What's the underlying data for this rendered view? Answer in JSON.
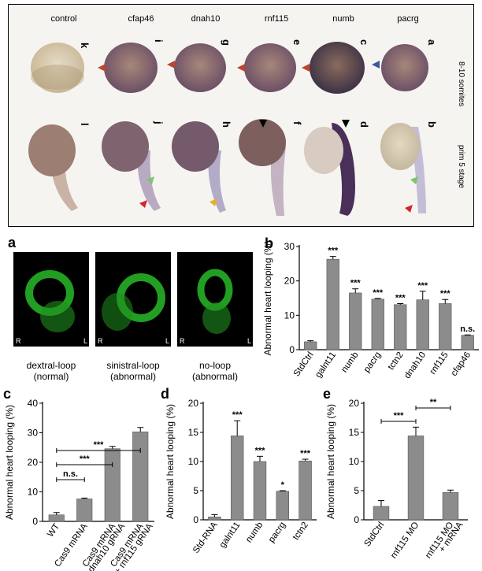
{
  "top_panel": {
    "columns": [
      "control",
      "cfap46",
      "dnah10",
      "rnf115",
      "numb",
      "pacrg"
    ],
    "row_labels": [
      "8-10 somites",
      "prim 5 stage"
    ],
    "row1_letters": [
      "k",
      "i",
      "g",
      "e",
      "c",
      "a"
    ],
    "row2_letters": [
      "l",
      "j",
      "h",
      "f",
      "d",
      "b"
    ]
  },
  "panel_a": {
    "letter": "a",
    "images": [
      {
        "caption": "dextral-loop\n(normal)",
        "left": "R",
        "right": "L"
      },
      {
        "caption": "sinistral-loop\n(abnormal)",
        "left": "R",
        "right": "L"
      },
      {
        "caption": "no-loop\n(abnormal)",
        "left": "R",
        "right": "L"
      }
    ]
  },
  "chart_data": [
    {
      "panel": "b",
      "type": "bar",
      "ylabel": "Abnormal heart looping (%)",
      "ylim": [
        0,
        30
      ],
      "yticks": [
        0,
        10,
        20,
        30
      ],
      "categories": [
        "StdCtrl",
        "galnt11",
        "numb",
        "pacrg",
        "tctn2",
        "dnah10",
        "rnf115",
        "cfap46"
      ],
      "values": [
        2.3,
        26.3,
        16.5,
        14.7,
        13.1,
        14.5,
        13.4,
        4.2
      ],
      "errors": [
        0.3,
        0.8,
        1.2,
        0.2,
        0.3,
        2.5,
        1.2,
        0.1
      ],
      "sig": [
        "",
        "***",
        "***",
        "***",
        "***",
        "***",
        "***",
        "n.s."
      ]
    },
    {
      "panel": "c",
      "type": "bar",
      "ylabel": "Abnormal heart looping (%)",
      "ylim": [
        0,
        40
      ],
      "yticks": [
        0,
        10,
        20,
        30,
        40
      ],
      "categories": [
        "WT",
        "Cas9 mRNA",
        "Cas9 mRNA\n+ dnah10 gRNA",
        "Cas9 mRNA\n+ rnf115 gRNA"
      ],
      "values": [
        2.2,
        7.6,
        24.6,
        30.3
      ],
      "errors": [
        0.8,
        0.3,
        0.8,
        1.5
      ],
      "brackets": [
        {
          "from": 0,
          "to": 1,
          "label": "n.s."
        },
        {
          "from": 0,
          "to": 2,
          "label": "***"
        },
        {
          "from": 0,
          "to": 3,
          "label": "***"
        }
      ]
    },
    {
      "panel": "d",
      "type": "bar",
      "ylabel": "Abnormal heart looping (%)",
      "ylim": [
        0,
        20
      ],
      "yticks": [
        0,
        5,
        10,
        15,
        20
      ],
      "categories": [
        "Std-RNA",
        "galnt11",
        "numb",
        "pacrg",
        "tctn2"
      ],
      "values": [
        0.5,
        14.4,
        10.0,
        4.9,
        10.1
      ],
      "errors": [
        0.4,
        2.6,
        0.9,
        0.1,
        0.3
      ],
      "sig": [
        "",
        "***",
        "***",
        "*",
        "***"
      ]
    },
    {
      "panel": "e",
      "type": "bar",
      "ylabel": "Abnormal heart looping (%)",
      "ylim": [
        0,
        20
      ],
      "yticks": [
        0,
        5,
        10,
        15,
        20
      ],
      "categories": [
        "StdCtrl",
        "rnf115 MO",
        "rnf115 MO\n+ mRNA"
      ],
      "values": [
        2.3,
        14.4,
        4.7
      ],
      "errors": [
        1.0,
        1.5,
        0.4
      ],
      "brackets": [
        {
          "from": 0,
          "to": 1,
          "label": "***"
        },
        {
          "from": 1,
          "to": 2,
          "label": "**"
        }
      ]
    }
  ]
}
